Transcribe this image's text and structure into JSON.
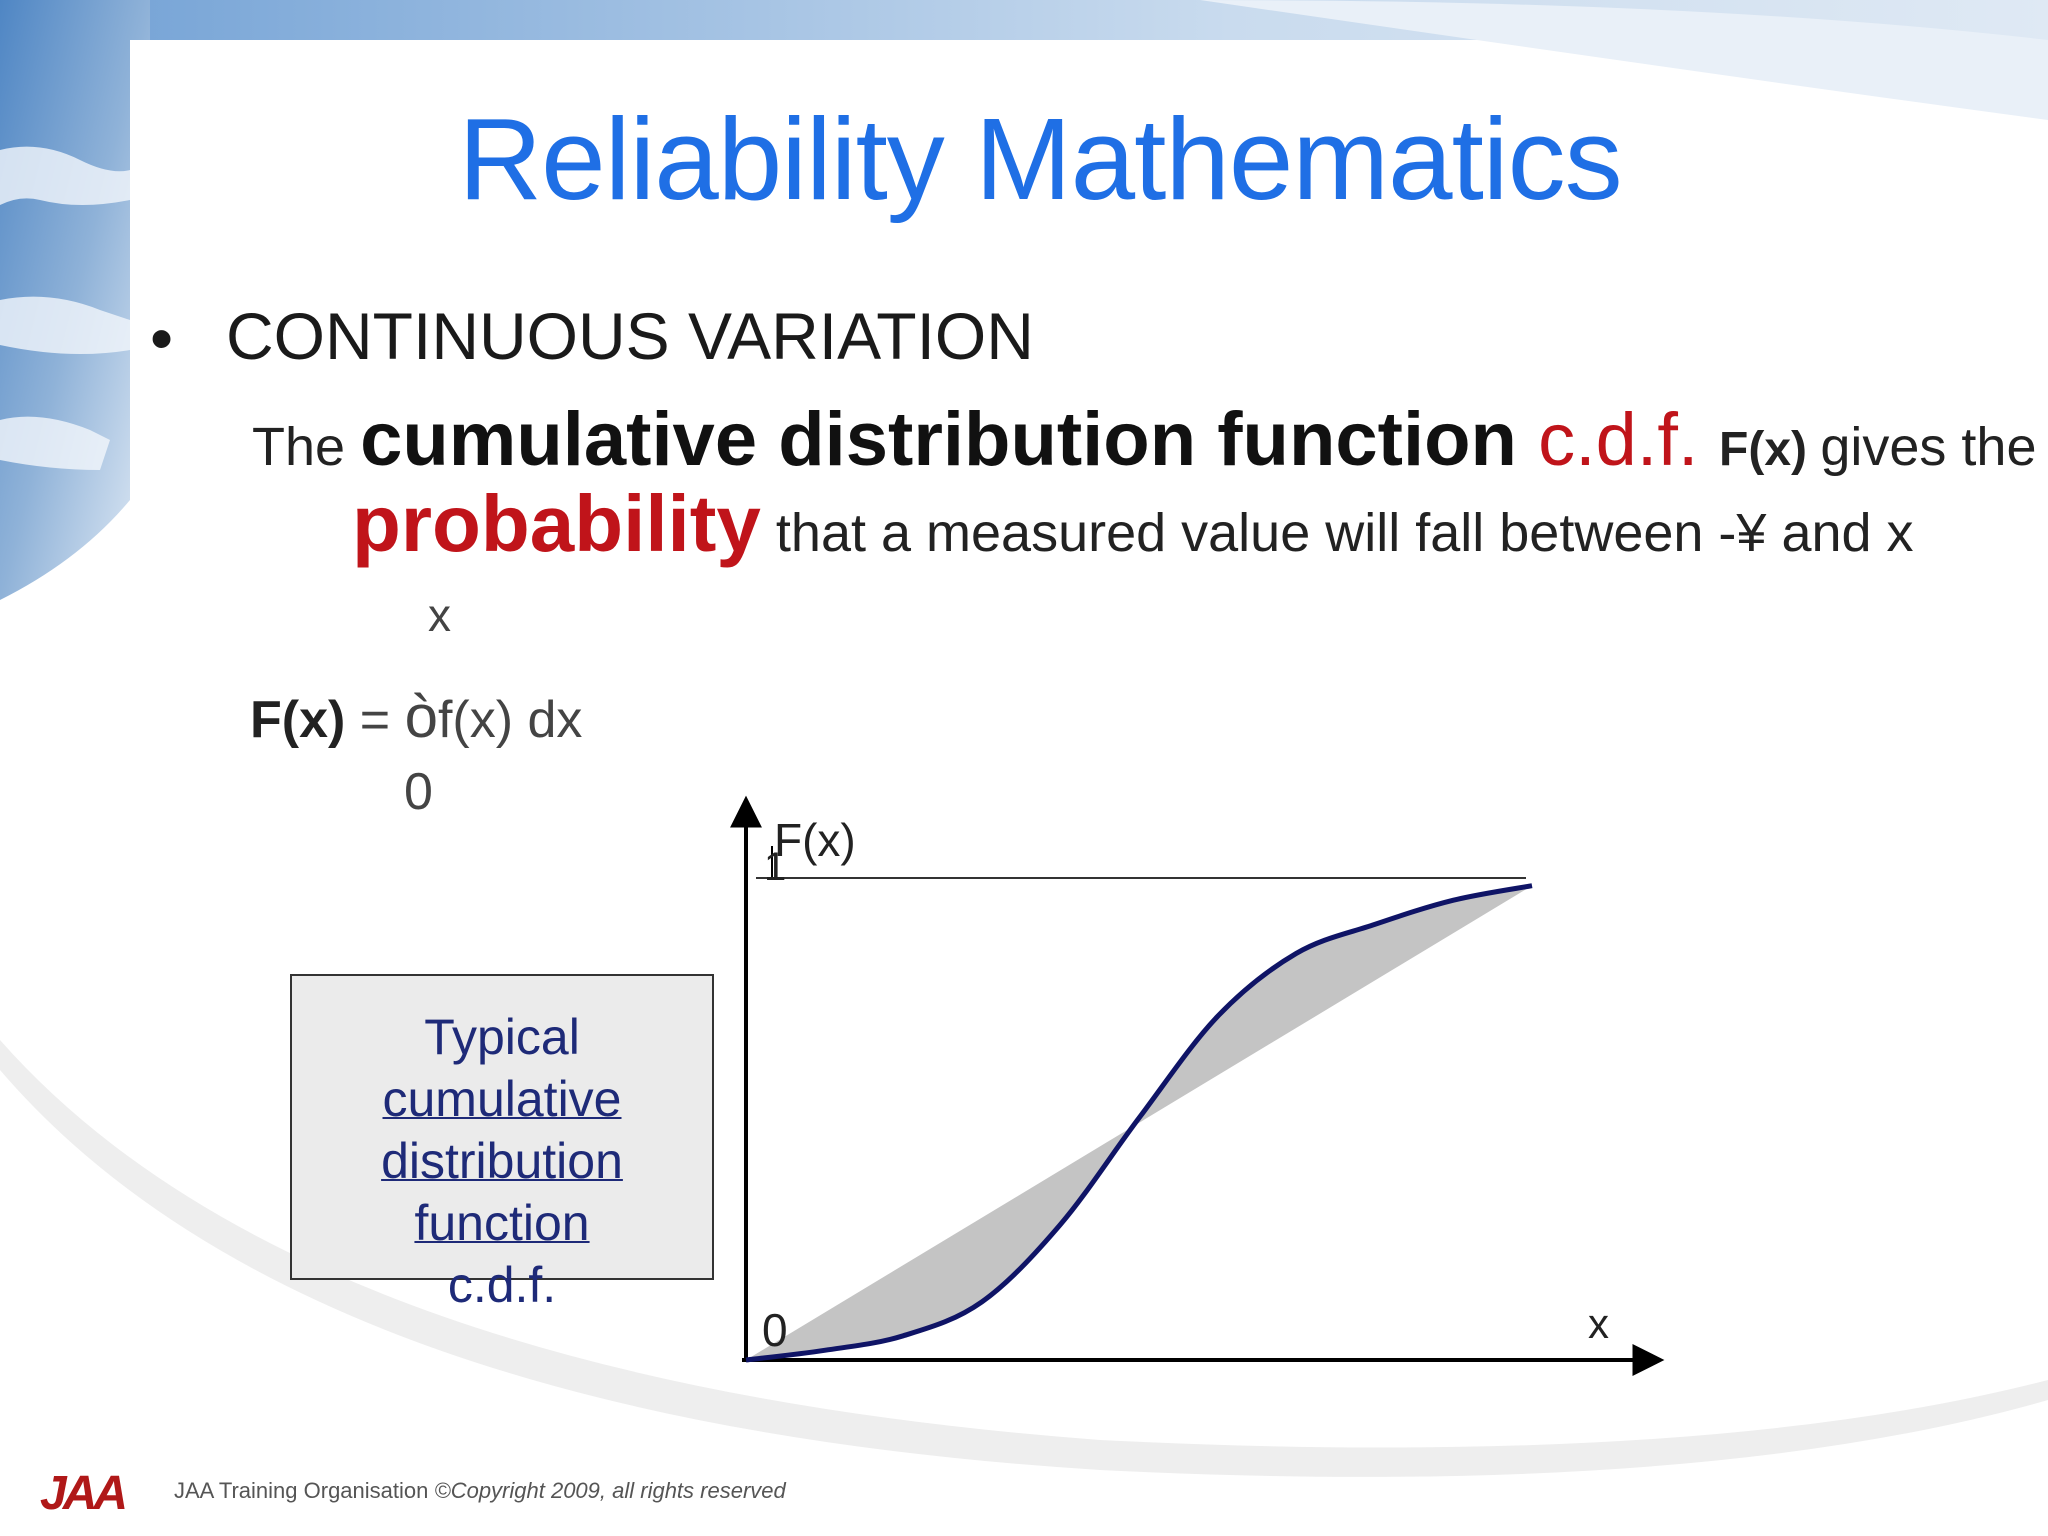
{
  "slide": {
    "title": "Reliability Mathematics",
    "bullet": "CONTINUOUS VARIATION",
    "sentence": {
      "w1": "The ",
      "w2": "cumulative distribution function ",
      "w3": "c.d.f. ",
      "w4": "F(x) ",
      "w5": "gives the",
      "w6": "probability",
      "w7": " that a measured value will fall between -¥  and x"
    },
    "formula": {
      "upper_limit": "x",
      "lhs": "F(x)",
      "equals": " =  ",
      "integral": "ò",
      "integrand": "f(x) dx",
      "lower_limit": "0"
    },
    "box_lines": [
      "Typical",
      "cumulative",
      "distribution",
      "function ",
      "c.d.f."
    ]
  },
  "chart_data": {
    "type": "line",
    "ylabel": "F(x)",
    "xlabel": "x",
    "origin_label": "0",
    "max_tick_label": "1",
    "series": [
      {
        "x": [
          0,
          0.1,
          0.2,
          0.3,
          0.4,
          0.5,
          0.6,
          0.7,
          0.8,
          0.9,
          1.0
        ],
        "values": [
          0,
          0.02,
          0.05,
          0.12,
          0.28,
          0.5,
          0.71,
          0.84,
          0.9,
          0.95,
          0.98
        ]
      }
    ],
    "reference": {
      "x": [
        0,
        1.0
      ],
      "values": [
        0,
        0.98
      ]
    },
    "ylim": [
      0,
      1
    ],
    "colors": {
      "curve": "#0f1466",
      "fill": "#c4c4c4",
      "axis": "#000000"
    }
  },
  "footer": {
    "logo": "JAA",
    "org": "JAA Training Organisation ",
    "copyright": "©Copyright 2009, all rights reserved"
  }
}
